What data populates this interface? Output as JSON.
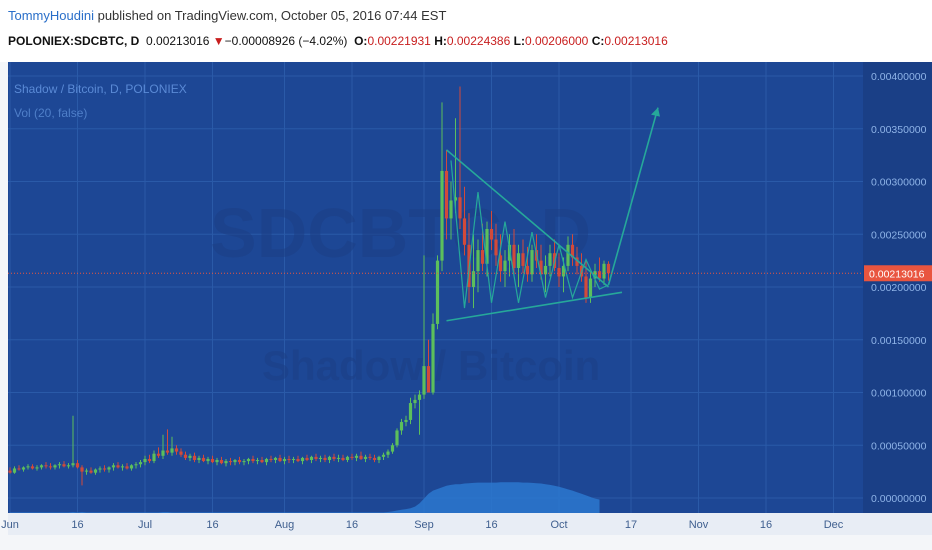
{
  "header": {
    "author": "TommyHoudini",
    "published": " published on TradingView.com, October 05, 2016 07:44 EST",
    "symbol": "POLONIEX:SDCBTC, D",
    "price": "0.00213016",
    "change": "−0.00008926 (−4.02%)",
    "o_label": "O:",
    "o_value": "0.00221931",
    "h_label": "H:",
    "h_value": "0.00224386",
    "l_label": "L:",
    "l_value": "0.00206000",
    "c_label": "C:",
    "c_value": "0.00213016"
  },
  "legend": {
    "title": "Shadow / Bitcoin, D, POLONIEX",
    "volume": "Vol (20, false)"
  },
  "watermark": {
    "symbol": "SDCBTC, D",
    "name": "Shadow / Bitcoin"
  },
  "last_price_label": "0.00213016",
  "colors": {
    "background": "#1d4795",
    "up": "#5cbf5c",
    "down": "#d24a3a",
    "drawing": "#26a89a",
    "price_line": "#e9553f"
  },
  "chart_data": {
    "type": "candlestick",
    "x_ticks": [
      "Jun",
      "16",
      "Jul",
      "16",
      "Aug",
      "16",
      "Sep",
      "16",
      "Oct",
      "17",
      "Nov",
      "16",
      "Dec"
    ],
    "y_ticks": [
      "0.00400000",
      "0.00350000",
      "0.00300000",
      "0.00250000",
      "0.00200000",
      "0.00150000",
      "0.00100000",
      "0.00050000",
      "0.00000000"
    ],
    "ylim": [
      0,
      0.0041
    ],
    "last_price": 0.00213016,
    "grid": true,
    "ohlc_daily_from_jun01": [
      [
        0.00026,
        0.00029,
        0.00023,
        0.00024
      ],
      [
        0.00024,
        0.0003,
        0.00023,
        0.00028
      ],
      [
        0.00028,
        0.00031,
        0.00026,
        0.00027
      ],
      [
        0.00027,
        0.0003,
        0.00025,
        0.00029
      ],
      [
        0.00029,
        0.00032,
        0.00027,
        0.0003
      ],
      [
        0.0003,
        0.00032,
        0.00027,
        0.00028
      ],
      [
        0.00028,
        0.00031,
        0.00026,
        0.00029
      ],
      [
        0.00029,
        0.00032,
        0.00027,
        0.00031
      ],
      [
        0.00031,
        0.00034,
        0.00028,
        0.0003
      ],
      [
        0.0003,
        0.00033,
        0.00027,
        0.00029
      ],
      [
        0.00029,
        0.00032,
        0.00027,
        0.00031
      ],
      [
        0.00031,
        0.00034,
        0.00028,
        0.00032
      ],
      [
        0.00032,
        0.00035,
        0.00029,
        0.0003
      ],
      [
        0.0003,
        0.00033,
        0.00028,
        0.00031
      ],
      [
        0.00031,
        0.00078,
        0.00029,
        0.00033
      ],
      [
        0.00033,
        0.00036,
        0.00028,
        0.00029
      ],
      [
        0.00029,
        0.00031,
        0.00012,
        0.00025
      ],
      [
        0.00025,
        0.00028,
        0.00022,
        0.00026
      ],
      [
        0.00026,
        0.00029,
        0.00023,
        0.00024
      ],
      [
        0.00024,
        0.00028,
        0.00022,
        0.00027
      ],
      [
        0.00027,
        0.0003,
        0.00024,
        0.00028
      ],
      [
        0.00028,
        0.00031,
        0.00025,
        0.00027
      ],
      [
        0.00027,
        0.0003,
        0.00024,
        0.00029
      ],
      [
        0.00029,
        0.00033,
        0.00026,
        0.00031
      ],
      [
        0.00031,
        0.00034,
        0.00028,
        0.00029
      ],
      [
        0.00029,
        0.00032,
        0.00026,
        0.0003
      ],
      [
        0.0003,
        0.00033,
        0.00027,
        0.00028
      ],
      [
        0.00028,
        0.00032,
        0.00026,
        0.00031
      ],
      [
        0.00031,
        0.00034,
        0.00028,
        0.00032
      ],
      [
        0.00032,
        0.00036,
        0.00029,
        0.00034
      ],
      [
        0.00034,
        0.0004,
        0.00031,
        0.00037
      ],
      [
        0.00037,
        0.00041,
        0.00033,
        0.00035
      ],
      [
        0.00035,
        0.00045,
        0.00033,
        0.00042
      ],
      [
        0.00042,
        0.00048,
        0.00038,
        0.0004
      ],
      [
        0.0004,
        0.0006,
        0.00037,
        0.00045
      ],
      [
        0.00045,
        0.00065,
        0.00041,
        0.00043
      ],
      [
        0.00043,
        0.00058,
        0.0004,
        0.00047
      ],
      [
        0.00047,
        0.0005,
        0.00041,
        0.00044
      ],
      [
        0.00044,
        0.00047,
        0.00039,
        0.00041
      ],
      [
        0.00041,
        0.00044,
        0.00036,
        0.00038
      ],
      [
        0.00038,
        0.00042,
        0.00035,
        0.0004
      ],
      [
        0.0004,
        0.00043,
        0.00034,
        0.00036
      ],
      [
        0.00036,
        0.0004,
        0.00033,
        0.00038
      ],
      [
        0.00038,
        0.00041,
        0.00034,
        0.00035
      ],
      [
        0.00035,
        0.00039,
        0.00032,
        0.00037
      ],
      [
        0.00037,
        0.0004,
        0.00033,
        0.00034
      ],
      [
        0.00034,
        0.00038,
        0.00031,
        0.00036
      ],
      [
        0.00036,
        0.00039,
        0.00032,
        0.00033
      ],
      [
        0.00033,
        0.00037,
        0.0003,
        0.00035
      ],
      [
        0.00035,
        0.00038,
        0.00031,
        0.00034
      ],
      [
        0.00034,
        0.00037,
        0.00031,
        0.00036
      ],
      [
        0.00036,
        0.00039,
        0.00032,
        0.00034
      ],
      [
        0.00034,
        0.00037,
        0.00031,
        0.00035
      ],
      [
        0.00035,
        0.00038,
        0.00032,
        0.00037
      ],
      [
        0.00037,
        0.0004,
        0.00033,
        0.00035
      ],
      [
        0.00035,
        0.00038,
        0.00032,
        0.00036
      ],
      [
        0.00036,
        0.00039,
        0.00033,
        0.00034
      ],
      [
        0.00034,
        0.00038,
        0.00031,
        0.00037
      ],
      [
        0.00037,
        0.0004,
        0.00034,
        0.00036
      ],
      [
        0.00036,
        0.00039,
        0.00033,
        0.00038
      ],
      [
        0.00038,
        0.00041,
        0.00034,
        0.00035
      ],
      [
        0.00035,
        0.00039,
        0.00032,
        0.00037
      ],
      [
        0.00037,
        0.0004,
        0.00033,
        0.00036
      ],
      [
        0.00036,
        0.00039,
        0.00033,
        0.00037
      ],
      [
        0.00037,
        0.0004,
        0.00034,
        0.00035
      ],
      [
        0.00035,
        0.00039,
        0.00032,
        0.00038
      ],
      [
        0.00038,
        0.00041,
        0.00035,
        0.00036
      ],
      [
        0.00036,
        0.0004,
        0.00033,
        0.00039
      ],
      [
        0.00039,
        0.00042,
        0.00035,
        0.00037
      ],
      [
        0.00037,
        0.0004,
        0.00034,
        0.00038
      ],
      [
        0.00038,
        0.00041,
        0.00034,
        0.00036
      ],
      [
        0.00036,
        0.0004,
        0.00033,
        0.00039
      ],
      [
        0.00039,
        0.00042,
        0.00035,
        0.00037
      ],
      [
        0.00037,
        0.00041,
        0.00034,
        0.00038
      ],
      [
        0.00038,
        0.00041,
        0.00035,
        0.00036
      ],
      [
        0.00036,
        0.0004,
        0.00034,
        0.00039
      ],
      [
        0.00039,
        0.00042,
        0.00036,
        0.00038
      ],
      [
        0.00038,
        0.00042,
        0.00035,
        0.0004
      ],
      [
        0.0004,
        0.00044,
        0.00036,
        0.00037
      ],
      [
        0.00037,
        0.00041,
        0.00034,
        0.00039
      ],
      [
        0.00039,
        0.00042,
        0.00036,
        0.00038
      ],
      [
        0.00038,
        0.00041,
        0.00034,
        0.00036
      ],
      [
        0.00036,
        0.0004,
        0.00033,
        0.00039
      ],
      [
        0.00039,
        0.00043,
        0.00036,
        0.00041
      ],
      [
        0.00041,
        0.00046,
        0.00038,
        0.00044
      ],
      [
        0.00044,
        0.00052,
        0.00042,
        0.0005
      ],
      [
        0.0005,
        0.00066,
        0.00048,
        0.00064
      ],
      [
        0.00064,
        0.00075,
        0.0006,
        0.00072
      ],
      [
        0.00072,
        0.00078,
        0.00068,
        0.00074
      ],
      [
        0.00074,
        0.00095,
        0.0007,
        0.0009
      ],
      [
        0.0009,
        0.00098,
        0.00085,
        0.00093
      ],
      [
        0.00093,
        0.00102,
        0.0006,
        0.00098
      ],
      [
        0.00098,
        0.0023,
        0.00094,
        0.00125
      ],
      [
        0.00125,
        0.0015,
        0.001,
        0.001
      ],
      [
        0.001,
        0.00175,
        0.00098,
        0.00165
      ],
      [
        0.00165,
        0.0023,
        0.0016,
        0.00225
      ],
      [
        0.00225,
        0.00375,
        0.00215,
        0.0031
      ],
      [
        0.0031,
        0.0033,
        0.00245,
        0.00265
      ],
      [
        0.00265,
        0.003,
        0.00245,
        0.00282
      ],
      [
        0.00282,
        0.0036,
        0.0027,
        0.00285
      ],
      [
        0.00285,
        0.0039,
        0.00255,
        0.00265
      ],
      [
        0.00265,
        0.00295,
        0.0023,
        0.0024
      ],
      [
        0.0024,
        0.0027,
        0.00185,
        0.002
      ],
      [
        0.002,
        0.0025,
        0.0018,
        0.00215
      ],
      [
        0.00215,
        0.00245,
        0.00195,
        0.00235
      ],
      [
        0.00235,
        0.0026,
        0.00215,
        0.00222
      ],
      [
        0.00222,
        0.00262,
        0.0021,
        0.00255
      ],
      [
        0.00255,
        0.00272,
        0.00235,
        0.00245
      ],
      [
        0.00245,
        0.0026,
        0.0022,
        0.0023
      ],
      [
        0.0023,
        0.0025,
        0.00205,
        0.00215
      ],
      [
        0.00215,
        0.00235,
        0.002,
        0.00225
      ],
      [
        0.00225,
        0.0025,
        0.0021,
        0.0024
      ],
      [
        0.0024,
        0.00255,
        0.0021,
        0.00218
      ],
      [
        0.00218,
        0.0024,
        0.002,
        0.00232
      ],
      [
        0.00232,
        0.00245,
        0.00213,
        0.0022
      ],
      [
        0.0022,
        0.00238,
        0.00205,
        0.00212
      ],
      [
        0.00212,
        0.0024,
        0.00205,
        0.00235
      ],
      [
        0.00235,
        0.0025,
        0.00218,
        0.00225
      ],
      [
        0.00225,
        0.0024,
        0.00207,
        0.00212
      ],
      [
        0.00212,
        0.0023,
        0.00195,
        0.0022
      ],
      [
        0.0022,
        0.0024,
        0.0021,
        0.00232
      ],
      [
        0.00232,
        0.00245,
        0.00215,
        0.00218
      ],
      [
        0.00218,
        0.00232,
        0.002,
        0.0021
      ],
      [
        0.0021,
        0.00228,
        0.00195,
        0.0022
      ],
      [
        0.0022,
        0.00248,
        0.00215,
        0.0024
      ],
      [
        0.0024,
        0.0025,
        0.0022,
        0.00228
      ],
      [
        0.00228,
        0.00238,
        0.00212,
        0.0022
      ],
      [
        0.0022,
        0.00232,
        0.00205,
        0.0021
      ],
      [
        0.0021,
        0.00225,
        0.00185,
        0.0019
      ],
      [
        0.0019,
        0.00215,
        0.00185,
        0.00208
      ],
      [
        0.00208,
        0.00222,
        0.002,
        0.00215
      ],
      [
        0.00215,
        0.00228,
        0.00205,
        0.00208
      ],
      [
        0.00208,
        0.00225,
        0.00202,
        0.00222
      ],
      [
        0.00221931,
        0.00224386,
        0.00206,
        0.00213016
      ]
    ],
    "volume_daily_from_jun01": [
      0.02,
      0.02,
      0.02,
      0.02,
      0.02,
      0.02,
      0.02,
      0.02,
      0.02,
      0.02,
      0.02,
      0.02,
      0.02,
      0.02,
      0.03,
      0.02,
      0.03,
      0.02,
      0.02,
      0.02,
      0.02,
      0.02,
      0.02,
      0.02,
      0.02,
      0.02,
      0.02,
      0.02,
      0.02,
      0.02,
      0.02,
      0.02,
      0.02,
      0.02,
      0.03,
      0.03,
      0.02,
      0.02,
      0.02,
      0.02,
      0.02,
      0.02,
      0.02,
      0.02,
      0.02,
      0.02,
      0.02,
      0.02,
      0.02,
      0.02,
      0.02,
      0.02,
      0.02,
      0.02,
      0.02,
      0.02,
      0.02,
      0.02,
      0.02,
      0.02,
      0.02,
      0.02,
      0.02,
      0.02,
      0.02,
      0.02,
      0.02,
      0.02,
      0.02,
      0.02,
      0.02,
      0.02,
      0.02,
      0.02,
      0.02,
      0.02,
      0.02,
      0.02,
      0.02,
      0.02,
      0.02,
      0.02,
      0.02,
      0.02,
      0.03,
      0.05,
      0.08,
      0.1,
      0.12,
      0.15,
      0.2,
      0.3,
      0.45,
      0.6,
      0.7,
      0.75,
      0.8,
      0.85,
      0.88,
      0.9,
      0.9,
      0.92,
      0.93,
      0.94,
      0.95,
      0.95,
      0.95,
      0.95,
      0.95,
      0.96,
      0.96,
      0.96,
      0.96,
      0.96,
      0.95,
      0.95,
      0.94,
      0.93,
      0.92,
      0.9,
      0.88,
      0.85,
      0.82,
      0.78,
      0.74,
      0.7,
      0.65,
      0.6,
      0.55,
      0.5,
      0.45,
      0.42
    ],
    "annotations": {
      "triangle_upper_line": [
        [
          97,
          0.0033
        ],
        [
          133,
          0.002
        ]
      ],
      "triangle_lower_line": [
        [
          97,
          0.00168
        ],
        [
          136,
          0.00195
        ]
      ],
      "projection_arrow": [
        [
          133,
          0.00202
        ],
        [
          144,
          0.0037
        ]
      ],
      "zigzag": [
        [
          98,
          0.0032
        ],
        [
          101,
          0.0018
        ],
        [
          104,
          0.0029
        ],
        [
          107,
          0.00185
        ],
        [
          110,
          0.00262
        ],
        [
          113,
          0.00185
        ],
        [
          116,
          0.00252
        ],
        [
          119,
          0.0019
        ],
        [
          122,
          0.0024
        ],
        [
          125,
          0.0019
        ],
        [
          128,
          0.00226
        ],
        [
          131,
          0.00198
        ],
        [
          133,
          0.00202
        ]
      ]
    }
  }
}
